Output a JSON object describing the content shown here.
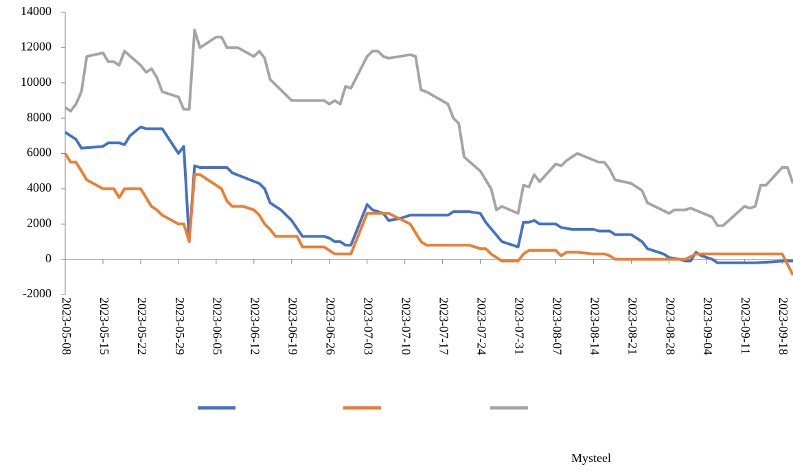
{
  "chart_data": {
    "type": "line",
    "xlim": [
      "2023-05-08",
      "2023-09-20"
    ],
    "xticks": [
      "2023-05-08",
      "2023-05-15",
      "2023-05-22",
      "2023-05-29",
      "2023-06-05",
      "2023-06-12",
      "2023-06-19",
      "2023-06-26",
      "2023-07-03",
      "2023-07-10",
      "2023-07-17",
      "2023-07-24",
      "2023-07-31",
      "2023-08-07",
      "2023-08-14",
      "2023-08-21",
      "2023-08-28",
      "2023-09-04",
      "2023-09-11",
      "2023-09-18"
    ],
    "ylim": [
      -2000,
      14000
    ],
    "yticks": [
      -2000,
      0,
      2000,
      4000,
      6000,
      8000,
      10000,
      12000,
      14000
    ],
    "source": "Mysteel",
    "series": [
      {
        "color": "#4472c4",
        "x": [
          "2023-05-08",
          "2023-05-10",
          "2023-05-11",
          "2023-05-15",
          "2023-05-16",
          "2023-05-18",
          "2023-05-19",
          "2023-05-20",
          "2023-05-22",
          "2023-05-23",
          "2023-05-26",
          "2023-05-29",
          "2023-05-30",
          "2023-05-31",
          "2023-06-01",
          "2023-06-02",
          "2023-06-07",
          "2023-06-08",
          "2023-06-13",
          "2023-06-14",
          "2023-06-15",
          "2023-06-17",
          "2023-06-19",
          "2023-06-21",
          "2023-06-25",
          "2023-06-26",
          "2023-06-27",
          "2023-06-28",
          "2023-06-29",
          "2023-06-30",
          "2023-07-03",
          "2023-07-04",
          "2023-07-06",
          "2023-07-07",
          "2023-07-09",
          "2023-07-11",
          "2023-07-18",
          "2023-07-19",
          "2023-07-22",
          "2023-07-24",
          "2023-07-25",
          "2023-07-28",
          "2023-07-31",
          "2023-08-01",
          "2023-08-02",
          "2023-08-03",
          "2023-08-04",
          "2023-08-07",
          "2023-08-08",
          "2023-08-10",
          "2023-08-14",
          "2023-08-15",
          "2023-08-17",
          "2023-08-18",
          "2023-08-21",
          "2023-08-23",
          "2023-08-24",
          "2023-08-27",
          "2023-08-28",
          "2023-08-30",
          "2023-08-31",
          "2023-09-01",
          "2023-09-02",
          "2023-09-03",
          "2023-09-05",
          "2023-09-06",
          "2023-09-13",
          "2023-09-16",
          "2023-09-18",
          "2023-09-20"
        ],
        "values": [
          7200,
          6800,
          6300,
          6400,
          6600,
          6600,
          6500,
          7000,
          7500,
          7400,
          7400,
          6000,
          6400,
          1000,
          5300,
          5200,
          5200,
          4900,
          4300,
          4000,
          3200,
          2800,
          2200,
          1300,
          1300,
          1200,
          1000,
          1000,
          800,
          800,
          3100,
          2800,
          2600,
          2200,
          2300,
          2500,
          2500,
          2700,
          2700,
          2600,
          2100,
          1000,
          700,
          2100,
          2100,
          2200,
          2000,
          2000,
          1800,
          1700,
          1700,
          1600,
          1600,
          1400,
          1400,
          1000,
          600,
          300,
          100,
          0,
          -100,
          -100,
          400,
          200,
          0,
          -200,
          -200,
          -150,
          -100,
          -100
        ]
      },
      {
        "color": "#ed7d31",
        "x": [
          "2023-05-08",
          "2023-05-09",
          "2023-05-10",
          "2023-05-12",
          "2023-05-15",
          "2023-05-17",
          "2023-05-18",
          "2023-05-19",
          "2023-05-22",
          "2023-05-24",
          "2023-05-25",
          "2023-05-26",
          "2023-05-29",
          "2023-05-30",
          "2023-05-31",
          "2023-06-01",
          "2023-06-02",
          "2023-06-06",
          "2023-06-07",
          "2023-06-08",
          "2023-06-10",
          "2023-06-12",
          "2023-06-13",
          "2023-06-14",
          "2023-06-15",
          "2023-06-16",
          "2023-06-20",
          "2023-06-21",
          "2023-06-25",
          "2023-06-27",
          "2023-06-30",
          "2023-07-03",
          "2023-07-07",
          "2023-07-09",
          "2023-07-11",
          "2023-07-13",
          "2023-07-14",
          "2023-07-22",
          "2023-07-24",
          "2023-07-25",
          "2023-07-26",
          "2023-07-28",
          "2023-07-30",
          "2023-07-31",
          "2023-08-01",
          "2023-08-02",
          "2023-08-07",
          "2023-08-08",
          "2023-08-09",
          "2023-08-11",
          "2023-08-14",
          "2023-08-16",
          "2023-08-17",
          "2023-08-18",
          "2023-08-31",
          "2023-09-02",
          "2023-09-18",
          "2023-09-20"
        ],
        "values": [
          6000,
          5500,
          5500,
          4500,
          4000,
          4000,
          3500,
          4000,
          4000,
          3000,
          2800,
          2500,
          2000,
          2000,
          1000,
          4800,
          4800,
          4000,
          3300,
          3000,
          3000,
          2800,
          2500,
          2000,
          1700,
          1300,
          1300,
          700,
          700,
          300,
          300,
          2600,
          2600,
          2300,
          2000,
          1000,
          800,
          800,
          600,
          600,
          300,
          -100,
          -100,
          -100,
          300,
          500,
          500,
          200,
          400,
          400,
          300,
          300,
          200,
          0,
          0,
          300,
          300,
          -900
        ]
      },
      {
        "color": "#a5a5a5",
        "x": [
          "2023-05-08",
          "2023-05-09",
          "2023-05-10",
          "2023-05-11",
          "2023-05-12",
          "2023-05-15",
          "2023-05-16",
          "2023-05-17",
          "2023-05-18",
          "2023-05-19",
          "2023-05-22",
          "2023-05-23",
          "2023-05-24",
          "2023-05-25",
          "2023-05-26",
          "2023-05-29",
          "2023-05-30",
          "2023-05-31",
          "2023-06-01",
          "2023-06-02",
          "2023-06-05",
          "2023-06-06",
          "2023-06-07",
          "2023-06-09",
          "2023-06-12",
          "2023-06-13",
          "2023-06-14",
          "2023-06-15",
          "2023-06-19",
          "2023-06-25",
          "2023-06-26",
          "2023-06-27",
          "2023-06-28",
          "2023-06-29",
          "2023-06-30",
          "2023-07-03",
          "2023-07-04",
          "2023-07-05",
          "2023-07-06",
          "2023-07-07",
          "2023-07-11",
          "2023-07-12",
          "2023-07-13",
          "2023-07-14",
          "2023-07-18",
          "2023-07-19",
          "2023-07-20",
          "2023-07-21",
          "2023-07-24",
          "2023-07-26",
          "2023-07-27",
          "2023-07-28",
          "2023-07-31",
          "2023-08-01",
          "2023-08-02",
          "2023-08-03",
          "2023-08-04",
          "2023-08-07",
          "2023-08-08",
          "2023-08-09",
          "2023-08-11",
          "2023-08-15",
          "2023-08-16",
          "2023-08-17",
          "2023-08-18",
          "2023-08-21",
          "2023-08-23",
          "2023-08-24",
          "2023-08-26",
          "2023-08-28",
          "2023-08-29",
          "2023-08-31",
          "2023-09-01",
          "2023-09-05",
          "2023-09-06",
          "2023-09-07",
          "2023-09-11",
          "2023-09-12",
          "2023-09-13",
          "2023-09-14",
          "2023-09-15",
          "2023-09-18",
          "2023-09-19",
          "2023-09-20"
        ],
        "values": [
          8600,
          8400,
          8800,
          9500,
          11500,
          11700,
          11200,
          11200,
          11000,
          11800,
          11000,
          10600,
          10800,
          10300,
          9500,
          9200,
          8500,
          8500,
          13000,
          12000,
          12600,
          12600,
          12000,
          12000,
          11500,
          11800,
          11400,
          10200,
          9000,
          9000,
          8800,
          9000,
          8800,
          9800,
          9700,
          11500,
          11800,
          11800,
          11500,
          11400,
          11600,
          11500,
          9600,
          9500,
          8800,
          8000,
          7700,
          5800,
          5000,
          4000,
          2800,
          3000,
          2600,
          4200,
          4100,
          4800,
          4400,
          5400,
          5300,
          5600,
          6000,
          5500,
          5500,
          5100,
          4500,
          4300,
          3900,
          3200,
          2900,
          2600,
          2800,
          2800,
          2900,
          2400,
          1900,
          1900,
          3000,
          2900,
          3000,
          4200,
          4200,
          5200,
          5200,
          4300
        ]
      }
    ]
  }
}
